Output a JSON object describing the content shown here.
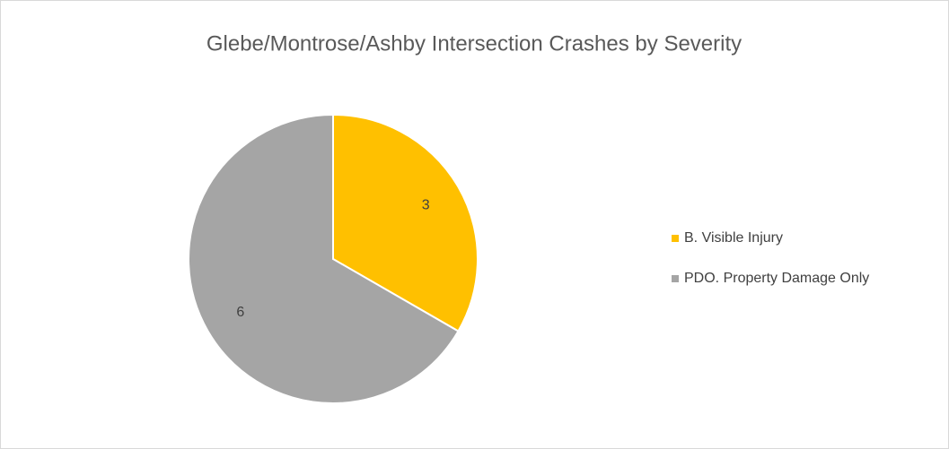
{
  "chart_data": {
    "type": "pie",
    "title": "Glebe/Montrose/Ashby Intersection Crashes by Severity",
    "categories": [
      "B. Visible Injury",
      "PDO. Property Damage Only"
    ],
    "values": [
      3,
      6
    ],
    "colors": [
      "#FFC000",
      "#A5A5A5"
    ],
    "legend": "right"
  }
}
